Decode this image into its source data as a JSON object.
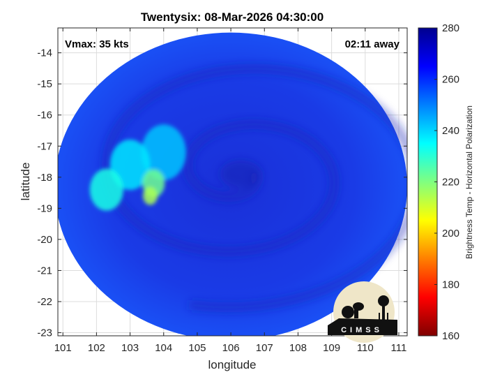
{
  "chart_data": {
    "type": "heatmap",
    "title": "Twentysix: 08-Mar-2026 04:30:00",
    "xlabel": "longitude",
    "ylabel": "latitude",
    "xlim": [
      100.85,
      111.25
    ],
    "ylim": [
      -23.1,
      -13.2
    ],
    "xticks": [
      101,
      102,
      103,
      104,
      105,
      106,
      107,
      108,
      109,
      110,
      111
    ],
    "yticks": [
      -14,
      -15,
      -16,
      -17,
      -18,
      -19,
      -20,
      -21,
      -22,
      -23
    ],
    "grid": true,
    "annotations": {
      "vmax": "Vmax: 35 kts",
      "away": "02:11 away"
    },
    "swath": {
      "center": [
        106.0,
        -18.3
      ],
      "radius_lon": 5.25,
      "radius_lat": 4.95
    },
    "storm_center": [
      106.3,
      -17.9
    ],
    "warm_features": [
      {
        "lon": 103.6,
        "lat": -18.6,
        "value": 215
      },
      {
        "lon": 103.7,
        "lat": -18.2,
        "value": 222
      },
      {
        "lon": 102.3,
        "lat": -18.4,
        "value": 232
      },
      {
        "lon": 103.0,
        "lat": -17.6,
        "value": 238
      },
      {
        "lon": 104.0,
        "lat": -17.2,
        "value": 242
      }
    ],
    "background_value": 262,
    "colorbar": {
      "label": "Brightness Temp - Horizontal Polarization",
      "ticks": [
        280,
        260,
        240,
        220,
        200,
        180,
        160
      ],
      "min": 160,
      "max": 280,
      "colormap": "jet",
      "colors": [
        "#7f0000",
        "#ff0000",
        "#ff7f00",
        "#ffff00",
        "#80ff80",
        "#00ffff",
        "#0080ff",
        "#0000ff",
        "#00008f"
      ]
    },
    "logo": "CIMSS"
  }
}
